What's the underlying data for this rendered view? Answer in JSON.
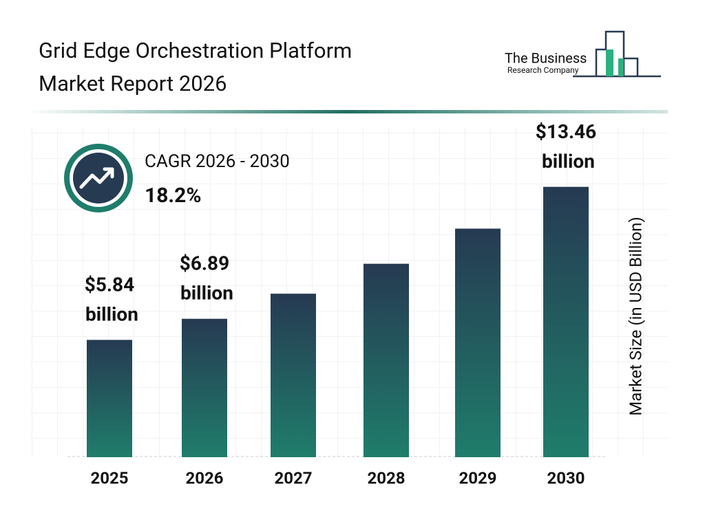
{
  "chart_data": {
    "type": "bar",
    "title": "Grid Edge Orchestration Platform Market Report 2026",
    "logo": {
      "line1": "The Business",
      "line2": "Research Company"
    },
    "cagr": {
      "label": "CAGR 2026 - 2030",
      "value": "18.2%"
    },
    "y_label": "Market Size (in USD Billion)",
    "categories": [
      "2025",
      "2026",
      "2027",
      "2028",
      "2029",
      "2030"
    ],
    "values": [
      5.84,
      6.89,
      8.14,
      9.63,
      11.38,
      13.46
    ],
    "value_labels": [
      "$5.84 billion",
      "$6.89 billion",
      null,
      null,
      null,
      "$13.46 billion"
    ],
    "color": {
      "top": "#263a52",
      "bottom": "#1f7d6b"
    },
    "ylim": [
      0,
      14
    ]
  }
}
